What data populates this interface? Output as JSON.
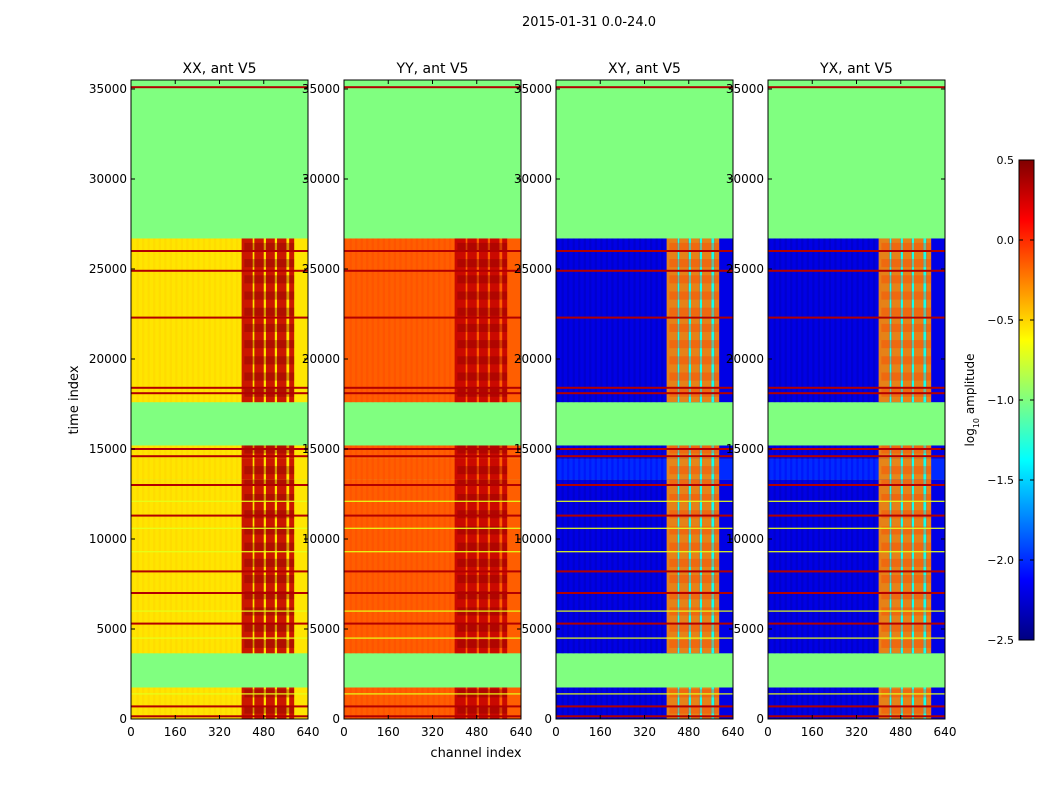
{
  "figure": {
    "suptitle": "2015-01-31 0.0-24.0",
    "shared_xlabel": "channel index",
    "shared_ylabel": "time index"
  },
  "chart_data": {
    "type": "heatmap",
    "x_range": [
      0,
      640
    ],
    "y_range": [
      0,
      35500
    ],
    "x_ticks": [
      0,
      160,
      320,
      480,
      640
    ],
    "y_ticks": [
      0,
      5000,
      10000,
      15000,
      20000,
      25000,
      30000,
      35000
    ],
    "blocks": [
      {
        "from": 0,
        "to": 1750,
        "kind": "data"
      },
      {
        "from": 1750,
        "to": 3650,
        "kind": "flagged"
      },
      {
        "from": 3650,
        "to": 13300,
        "kind": "data"
      },
      {
        "from": 13300,
        "to": 14450,
        "kind": "data_upper"
      },
      {
        "from": 14450,
        "to": 15200,
        "kind": "data"
      },
      {
        "from": 15200,
        "to": 17600,
        "kind": "flagged"
      },
      {
        "from": 17600,
        "to": 26700,
        "kind": "data"
      },
      {
        "from": 26700,
        "to": 35500,
        "kind": "flagged"
      }
    ],
    "panels": [
      {
        "title": "XX, ant V5",
        "base_level": -0.55,
        "band_level": 0.3
      },
      {
        "title": "YY, ant V5",
        "base_level": -0.15,
        "band_level": 0.3
      },
      {
        "title": "XY, ant V5",
        "base_level": -2.2,
        "band_level": -0.3
      },
      {
        "title": "YX, ant V5",
        "base_level": -2.2,
        "band_level": -0.3
      }
    ],
    "colorbar": {
      "label": "log10 amplitude",
      "label_base": "log",
      "label_sub": "10",
      "label_rest": " amplitude",
      "range": [
        -2.5,
        0.5
      ],
      "ticks": [
        0.5,
        0.0,
        -0.5,
        -1.0,
        -1.5,
        -2.0,
        -2.5
      ],
      "tick_labels": [
        "0.5",
        "0.0",
        "−0.5",
        "−1.0",
        "−1.5",
        "−2.0",
        "−2.5"
      ],
      "colormap": "jet"
    }
  }
}
